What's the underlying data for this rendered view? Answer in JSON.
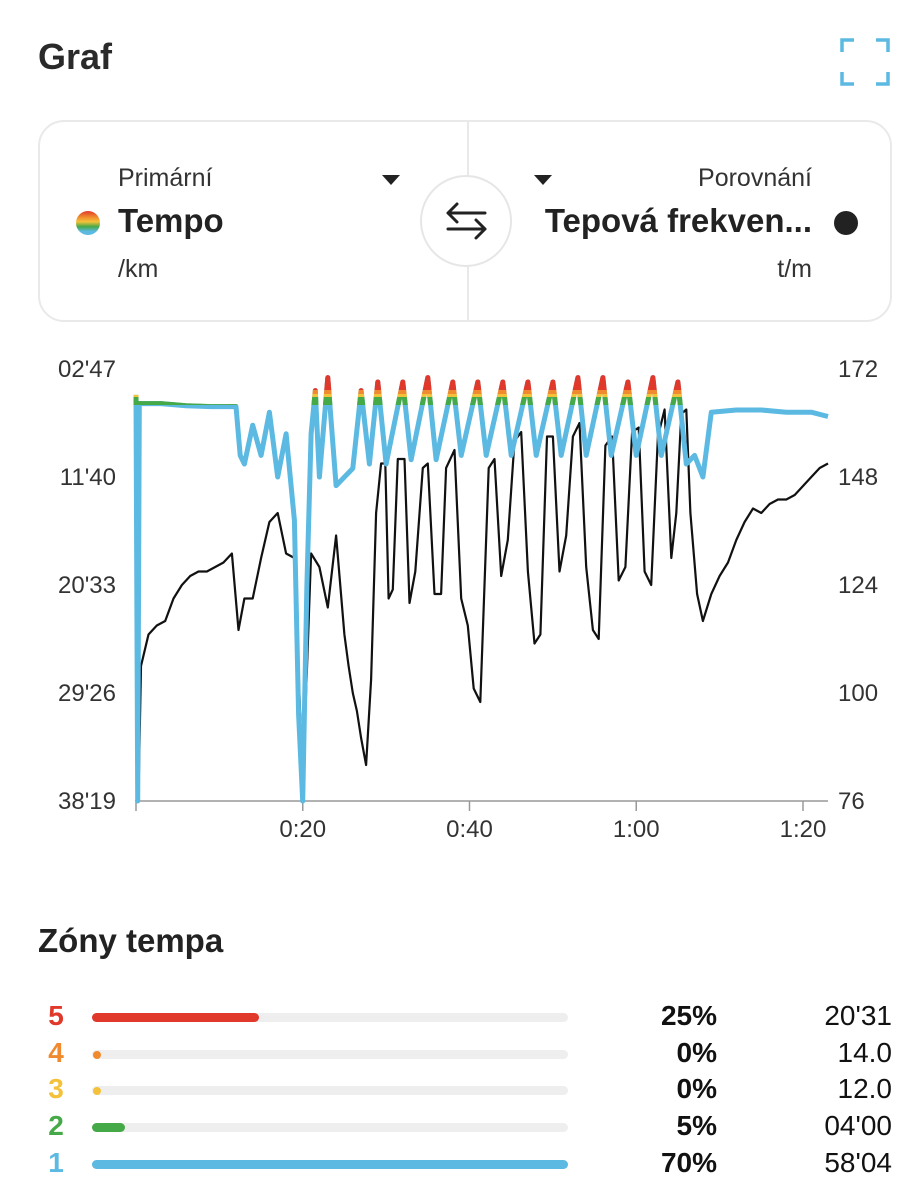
{
  "header": {
    "title": "Graf",
    "expand_icon": "fullscreen-corners-icon"
  },
  "selector": {
    "primary": {
      "label": "Primární",
      "value": "Tempo",
      "unit": "/km",
      "dot": "rainbow"
    },
    "comparison": {
      "label": "Porovnání",
      "value": "Tepová frekven...",
      "unit": "t/m",
      "dot_color": "#222222"
    },
    "swap_icon": "swap-arrows-icon"
  },
  "colors": {
    "pace_line": "#5bb9e2",
    "hr_line": "#111111",
    "zone5": "#e0382a",
    "zone4": "#ef8a2e",
    "zone3": "#f4c23a",
    "zone2": "#46a948",
    "zone1": "#5bb9e2",
    "icon_accent": "#5bb9e2"
  },
  "chart_data": {
    "type": "line",
    "x_ticks": [
      "0:20",
      "0:40",
      "1:00",
      "1:20"
    ],
    "x_tick_minutes": [
      20,
      40,
      60,
      80
    ],
    "x_range_minutes": [
      0,
      83
    ],
    "y_left_ticks": [
      "02'47",
      "11'40",
      "20'33",
      "29'26",
      "38'19"
    ],
    "y_right_ticks": [
      "172",
      "148",
      "124",
      "100",
      "76"
    ],
    "y_right_range": [
      76,
      172
    ],
    "series": [
      {
        "name": "Tempo",
        "axis": "left",
        "note_values": "pace fraction from top (0 = 02'47, 1 = 38'19)",
        "points": [
          [
            0,
            0.06
          ],
          [
            0.2,
            1.0
          ],
          [
            0.4,
            0.08
          ],
          [
            1,
            0.08
          ],
          [
            3,
            0.08
          ],
          [
            6,
            0.085
          ],
          [
            9,
            0.087
          ],
          [
            12,
            0.087
          ],
          [
            12.5,
            0.2
          ],
          [
            13,
            0.22
          ],
          [
            14,
            0.13
          ],
          [
            15,
            0.2
          ],
          [
            16,
            0.1
          ],
          [
            17,
            0.25
          ],
          [
            18,
            0.15
          ],
          [
            19,
            0.35
          ],
          [
            19.5,
            0.8
          ],
          [
            20,
            1.0
          ],
          [
            20.5,
            0.5
          ],
          [
            21,
            0.15
          ],
          [
            21.5,
            0.05
          ],
          [
            22,
            0.25
          ],
          [
            23,
            0.02
          ],
          [
            24,
            0.27
          ],
          [
            26,
            0.23
          ],
          [
            27,
            0.05
          ],
          [
            28,
            0.22
          ],
          [
            29,
            0.03
          ],
          [
            30,
            0.22
          ],
          [
            32,
            0.03
          ],
          [
            33,
            0.21
          ],
          [
            35,
            0.02
          ],
          [
            36,
            0.21
          ],
          [
            38,
            0.03
          ],
          [
            39,
            0.2
          ],
          [
            41,
            0.03
          ],
          [
            42,
            0.2
          ],
          [
            44,
            0.03
          ],
          [
            45,
            0.2
          ],
          [
            47,
            0.03
          ],
          [
            48,
            0.2
          ],
          [
            50,
            0.03
          ],
          [
            51,
            0.2
          ],
          [
            53,
            0.02
          ],
          [
            54,
            0.2
          ],
          [
            56,
            0.02
          ],
          [
            57,
            0.2
          ],
          [
            59,
            0.03
          ],
          [
            60,
            0.2
          ],
          [
            62,
            0.02
          ],
          [
            63,
            0.2
          ],
          [
            65,
            0.03
          ],
          [
            66,
            0.22
          ],
          [
            67,
            0.2
          ],
          [
            68,
            0.25
          ],
          [
            69,
            0.1
          ],
          [
            72,
            0.095
          ],
          [
            75,
            0.095
          ],
          [
            78,
            0.1
          ],
          [
            81,
            0.1
          ],
          [
            83,
            0.11
          ]
        ]
      },
      {
        "name": "Tepová frekvence",
        "axis": "right",
        "points": [
          [
            0,
            76
          ],
          [
            0.3,
            77
          ],
          [
            0.6,
            106
          ],
          [
            1.5,
            113
          ],
          [
            2.5,
            115
          ],
          [
            3.5,
            116
          ],
          [
            4.5,
            121
          ],
          [
            5.5,
            124
          ],
          [
            6.5,
            126
          ],
          [
            7.5,
            127
          ],
          [
            8.5,
            127
          ],
          [
            9.5,
            128
          ],
          [
            10.5,
            129
          ],
          [
            11.5,
            131
          ],
          [
            12.3,
            114
          ],
          [
            13,
            121
          ],
          [
            14,
            121
          ],
          [
            15,
            130
          ],
          [
            16,
            138
          ],
          [
            17,
            140
          ],
          [
            18,
            131
          ],
          [
            19,
            130
          ],
          [
            20,
            80
          ],
          [
            20.5,
            105
          ],
          [
            21,
            131
          ],
          [
            22,
            128
          ],
          [
            23,
            119
          ],
          [
            24,
            135
          ],
          [
            25,
            113
          ],
          [
            25.5,
            106
          ],
          [
            26,
            100
          ],
          [
            26.5,
            96
          ],
          [
            27,
            90
          ],
          [
            27.6,
            84
          ],
          [
            28.2,
            103
          ],
          [
            28.8,
            140
          ],
          [
            29.4,
            151
          ],
          [
            29.9,
            151
          ],
          [
            30.3,
            121
          ],
          [
            30.8,
            123
          ],
          [
            31.4,
            152
          ],
          [
            32.2,
            152
          ],
          [
            32.8,
            120
          ],
          [
            33.5,
            127
          ],
          [
            34.4,
            150
          ],
          [
            35,
            151
          ],
          [
            35.8,
            122
          ],
          [
            36.6,
            122
          ],
          [
            37.2,
            150
          ],
          [
            38.2,
            154
          ],
          [
            39,
            121
          ],
          [
            39.8,
            115
          ],
          [
            40.5,
            101
          ],
          [
            41.3,
            98
          ],
          [
            42.3,
            150
          ],
          [
            43,
            152
          ],
          [
            43.8,
            126
          ],
          [
            44.6,
            134
          ],
          [
            45.4,
            156
          ],
          [
            46.2,
            158
          ],
          [
            47,
            127
          ],
          [
            47.8,
            111
          ],
          [
            48.5,
            113
          ],
          [
            49.3,
            157
          ],
          [
            50,
            157
          ],
          [
            50.8,
            127
          ],
          [
            51.6,
            135
          ],
          [
            52.4,
            157
          ],
          [
            53.2,
            160
          ],
          [
            54,
            128
          ],
          [
            54.8,
            114
          ],
          [
            55.5,
            112
          ],
          [
            56.3,
            155
          ],
          [
            57.1,
            157
          ],
          [
            57.9,
            125
          ],
          [
            58.7,
            128
          ],
          [
            59.5,
            158
          ],
          [
            60.3,
            159
          ],
          [
            61,
            127
          ],
          [
            61.8,
            124
          ],
          [
            62.6,
            157
          ],
          [
            63.4,
            163
          ],
          [
            64.2,
            130
          ],
          [
            64.8,
            140
          ],
          [
            65.4,
            162
          ],
          [
            66,
            163
          ],
          [
            66.5,
            140
          ],
          [
            67.3,
            122
          ],
          [
            68,
            116
          ],
          [
            69,
            122
          ],
          [
            70,
            126
          ],
          [
            71,
            129
          ],
          [
            72,
            134
          ],
          [
            73,
            138
          ],
          [
            74,
            141
          ],
          [
            75,
            140
          ],
          [
            76,
            142
          ],
          [
            77,
            143
          ],
          [
            78,
            143
          ],
          [
            79,
            144
          ],
          [
            80,
            146
          ],
          [
            81,
            148
          ],
          [
            82,
            150
          ],
          [
            83,
            151
          ]
        ]
      }
    ]
  },
  "zones": {
    "title": "Zóny tempa",
    "rows": [
      {
        "num": "5",
        "color": "#e0382a",
        "fill": 0.35,
        "pct": "25%",
        "value": "20'31"
      },
      {
        "num": "4",
        "color": "#ef8a2e",
        "fill": 0.0,
        "pct": "0%",
        "value": "14.0"
      },
      {
        "num": "3",
        "color": "#f4c23a",
        "fill": 0.0,
        "pct": "0%",
        "value": "12.0"
      },
      {
        "num": "2",
        "color": "#46a948",
        "fill": 0.07,
        "pct": "5%",
        "value": "04'00"
      },
      {
        "num": "1",
        "color": "#5bb9e2",
        "fill": 1.0,
        "pct": "70%",
        "value": "58'04"
      }
    ]
  }
}
